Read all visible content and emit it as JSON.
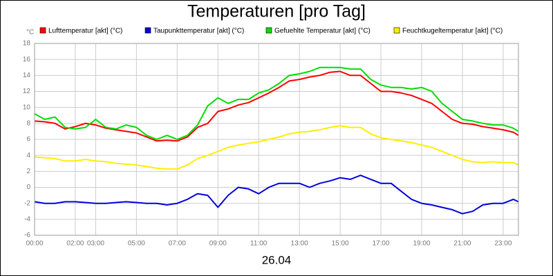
{
  "chart_data": {
    "type": "line",
    "title": "Temperaturen [pro Tag]",
    "x_label": "26.04",
    "y_label": "°C",
    "x": [
      0,
      0.5,
      1,
      1.5,
      2,
      2.5,
      3,
      3.5,
      4,
      4.5,
      5,
      5.5,
      6,
      6.5,
      7,
      7.5,
      8,
      8.5,
      9,
      9.5,
      10,
      10.5,
      11,
      11.5,
      12,
      12.5,
      13,
      13.5,
      14,
      14.5,
      15,
      15.5,
      16,
      16.5,
      17,
      17.5,
      18,
      18.5,
      19,
      19.5,
      20,
      20.5,
      21,
      21.5,
      22,
      22.5,
      23,
      23.5,
      23.75
    ],
    "series": [
      {
        "name": "Lufttemperatur [akt] (°C)",
        "color": "#ff0000",
        "values": [
          8.3,
          8.2,
          8.0,
          7.3,
          7.6,
          8.0,
          7.8,
          7.4,
          7.2,
          7.0,
          6.8,
          6.3,
          5.8,
          5.9,
          5.8,
          6.3,
          7.5,
          8.0,
          9.5,
          9.8,
          10.3,
          10.6,
          11.2,
          11.8,
          12.5,
          13.3,
          13.5,
          13.8,
          14.0,
          14.4,
          14.5,
          14.0,
          14.0,
          13.0,
          12.0,
          12.0,
          11.8,
          11.5,
          11.0,
          10.5,
          9.5,
          8.5,
          8.0,
          7.9,
          7.6,
          7.4,
          7.2,
          6.9,
          6.5
        ]
      },
      {
        "name": "Taupunkttemperatur [akt] (°C)",
        "color": "#0000dd",
        "values": [
          -1.8,
          -2.0,
          -2.0,
          -1.8,
          -1.8,
          -1.9,
          -2.0,
          -2.0,
          -1.9,
          -1.8,
          -1.9,
          -2.0,
          -2.0,
          -2.2,
          -2.0,
          -1.5,
          -0.8,
          -1.0,
          -2.5,
          -1.0,
          0.0,
          -0.2,
          -0.8,
          0.0,
          0.5,
          0.5,
          0.5,
          0.0,
          0.5,
          0.8,
          1.2,
          1.0,
          1.5,
          1.0,
          0.5,
          0.5,
          -0.5,
          -1.5,
          -2.0,
          -2.2,
          -2.5,
          -2.8,
          -3.3,
          -3.0,
          -2.2,
          -2.0,
          -2.0,
          -1.5,
          -1.8
        ]
      },
      {
        "name": "Gefuehlte Temperatur [akt] (°C)",
        "color": "#00dd00",
        "values": [
          9.2,
          8.5,
          8.8,
          7.5,
          7.3,
          7.5,
          8.5,
          7.5,
          7.3,
          7.8,
          7.5,
          6.5,
          6.0,
          6.5,
          6.0,
          6.5,
          7.8,
          10.2,
          11.2,
          10.5,
          11.0,
          11.0,
          11.8,
          12.2,
          13.0,
          14.0,
          14.2,
          14.5,
          15.0,
          15.0,
          15.0,
          14.8,
          14.8,
          13.5,
          12.8,
          12.5,
          12.5,
          12.3,
          12.5,
          12.0,
          10.5,
          9.5,
          8.5,
          8.3,
          8.0,
          7.8,
          7.8,
          7.4,
          7.0
        ]
      },
      {
        "name": "Feuchtkugeltemperatur [akt] (°C)",
        "color": "#ffee00",
        "values": [
          3.8,
          3.7,
          3.6,
          3.3,
          3.3,
          3.5,
          3.3,
          3.2,
          3.0,
          2.9,
          2.8,
          2.6,
          2.4,
          2.3,
          2.3,
          2.8,
          3.6,
          4.0,
          4.5,
          5.0,
          5.3,
          5.5,
          5.7,
          6.0,
          6.3,
          6.7,
          6.9,
          7.0,
          7.2,
          7.5,
          7.7,
          7.5,
          7.5,
          6.7,
          6.2,
          6.0,
          5.8,
          5.6,
          5.3,
          5.0,
          4.5,
          4.0,
          3.5,
          3.2,
          3.1,
          3.2,
          3.1,
          3.1,
          2.8
        ]
      }
    ],
    "xlim": [
      0,
      23.75
    ],
    "xticks": [
      {
        "value": 0,
        "label": "00:00"
      },
      {
        "value": 2,
        "label": "02:00"
      },
      {
        "value": 3,
        "label": "03:00"
      },
      {
        "value": 5,
        "label": "05:00"
      },
      {
        "value": 7,
        "label": "07:00"
      },
      {
        "value": 9,
        "label": "09:00"
      },
      {
        "value": 11,
        "label": "11:00"
      },
      {
        "value": 13,
        "label": "13:00"
      },
      {
        "value": 15,
        "label": "15:00"
      },
      {
        "value": 17,
        "label": "17:00"
      },
      {
        "value": 19,
        "label": "19:00"
      },
      {
        "value": 21,
        "label": "21:00"
      },
      {
        "value": 23,
        "label": "23:00"
      }
    ],
    "ylim": [
      -6,
      18
    ],
    "yticks": [
      -6,
      -4,
      -2,
      0,
      2,
      4,
      6,
      8,
      10,
      12,
      14,
      16,
      18
    ],
    "grid": true
  }
}
